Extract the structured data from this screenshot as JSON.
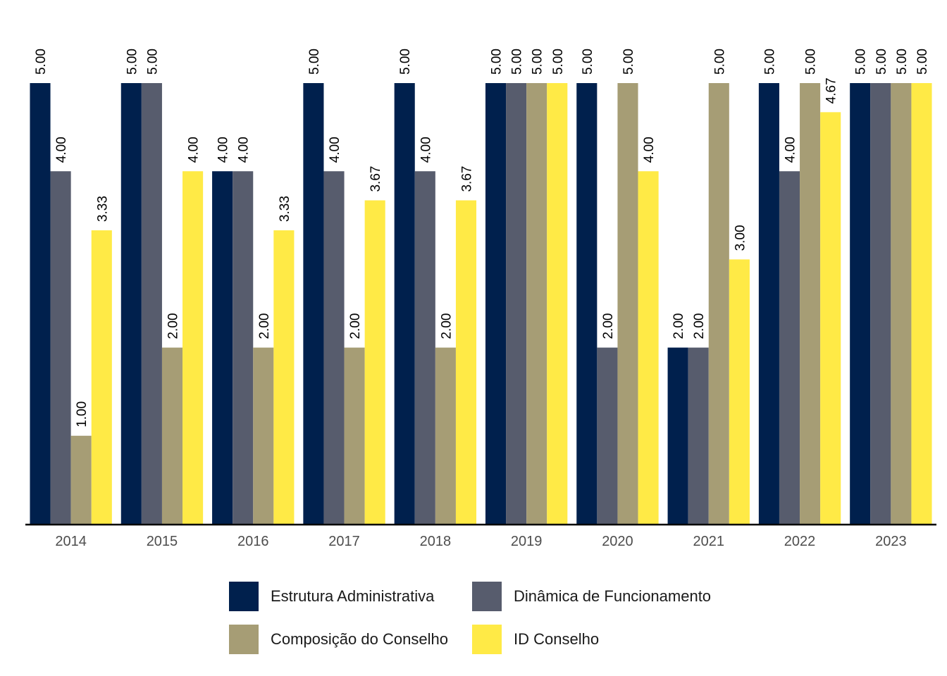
{
  "chart_data": {
    "type": "bar",
    "title": "",
    "xlabel": "",
    "ylabel": "",
    "ylim": [
      0,
      5
    ],
    "grid": false,
    "legend_position": "bottom",
    "categories": [
      "2014",
      "2015",
      "2016",
      "2017",
      "2018",
      "2019",
      "2020",
      "2021",
      "2022",
      "2023"
    ],
    "series": [
      {
        "name": "Estrutura Administrativa",
        "color": "#00204D",
        "values": [
          5,
          5,
          4,
          5,
          5,
          5,
          5,
          2,
          5,
          5
        ]
      },
      {
        "name": "Dinâmica de Funcionamento",
        "color": "#575C6D",
        "values": [
          4,
          5,
          4,
          4,
          4,
          5,
          2,
          2,
          4,
          5
        ]
      },
      {
        "name": "Composição do Conselho",
        "color": "#A69D75",
        "values": [
          1,
          2,
          2,
          2,
          2,
          5,
          5,
          5,
          5,
          5
        ]
      },
      {
        "name": "ID Conselho",
        "color": "#FFEA46",
        "values": [
          3.33,
          4,
          3.33,
          3.67,
          3.67,
          5,
          4,
          3,
          4.67,
          5
        ]
      }
    ]
  }
}
